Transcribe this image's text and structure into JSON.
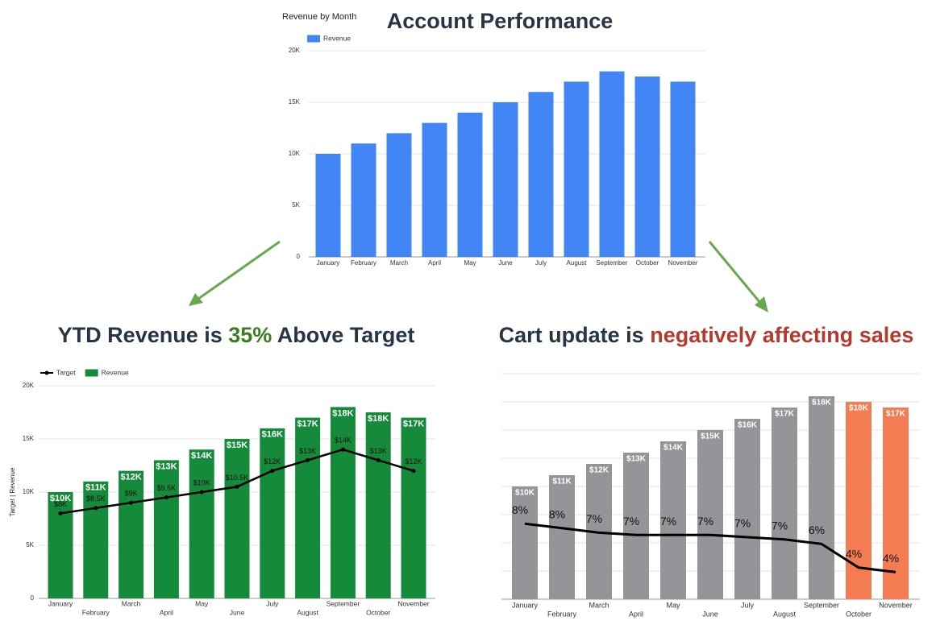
{
  "headings": [
    [
      {
        "text": "Account Performance",
        "color": "#263445"
      }
    ],
    [
      {
        "text": "YTD Revenue is ",
        "color": "#263445"
      },
      {
        "text": "35%",
        "color": "#3a7d1e"
      },
      {
        "text": " Above Target",
        "color": "#263445"
      }
    ],
    [
      {
        "text": "Cart update is ",
        "color": "#263445"
      },
      {
        "text": "negatively affecting sales",
        "color": "#b5392e"
      }
    ]
  ],
  "chart_data": [
    {
      "type": "bar",
      "title": "Revenue by Month",
      "legend": "top-left",
      "categories": [
        "January",
        "February",
        "March",
        "April",
        "May",
        "June",
        "July",
        "August",
        "September",
        "October",
        "November"
      ],
      "series": [
        {
          "name": "Revenue",
          "color": "#4285f4",
          "values": [
            10000,
            11000,
            12000,
            13000,
            14000,
            15000,
            16000,
            17000,
            18000,
            17500,
            17000
          ]
        }
      ],
      "ylim": [
        0,
        20000
      ],
      "yticks": [
        0,
        {
          "value": 5000,
          "label": "5K"
        },
        {
          "value": 10000,
          "label": "10K"
        },
        {
          "value": 15000,
          "label": "15K"
        },
        {
          "value": 20000,
          "label": "20K"
        }
      ],
      "grid": true
    },
    {
      "type": "bar_line",
      "ylabel": "Target | Revenue",
      "legend": "top-left",
      "categories": [
        "January",
        "February",
        "March",
        "April",
        "May",
        "June",
        "July",
        "August",
        "September",
        "October",
        "November"
      ],
      "series": [
        {
          "name": "Target",
          "kind": "line",
          "color": "#000000",
          "markers": true,
          "values": [
            8000,
            8500,
            9000,
            9500,
            10000,
            10500,
            12000,
            13000,
            14000,
            13000,
            12000
          ],
          "value_labels": [
            "$8K",
            "$8.5K",
            "$9K",
            "$9.5K",
            "$10K",
            "$10.5K",
            "$12K",
            "$13K",
            "$14K",
            "$13K",
            "$12K"
          ]
        },
        {
          "name": "Revenue",
          "kind": "bar",
          "color": "#148a3a",
          "values": [
            10000,
            11000,
            12000,
            13000,
            14000,
            15000,
            16000,
            17000,
            18000,
            17500,
            17000
          ],
          "value_labels": [
            "$10K",
            "$11K",
            "$12K",
            "$13K",
            "$14K",
            "$15K",
            "$16K",
            "$17K",
            "$18K",
            "$18K",
            "$17K"
          ]
        }
      ],
      "ylim": [
        0,
        20000
      ],
      "yticks": [
        0,
        {
          "value": 5000,
          "label": "5K"
        },
        {
          "value": 10000,
          "label": "10K"
        },
        {
          "value": 15000,
          "label": "15K"
        },
        {
          "value": 20000,
          "label": "20K"
        }
      ],
      "grid": true
    },
    {
      "type": "bar_line",
      "categories": [
        "January",
        "February",
        "March",
        "April",
        "May",
        "June",
        "July",
        "August",
        "September",
        "October",
        "November"
      ],
      "series": [
        {
          "kind": "bar",
          "color": "#939598",
          "colors": [
            "#939598",
            "#939598",
            "#939598",
            "#939598",
            "#939598",
            "#939598",
            "#939598",
            "#939598",
            "#939598",
            "#f47c52",
            "#f47c52"
          ],
          "values": [
            10000,
            11000,
            12000,
            13000,
            14000,
            15000,
            16000,
            17000,
            18000,
            17500,
            17000
          ],
          "value_labels": [
            "$10K",
            "$11K",
            "$12K",
            "$13K",
            "$14K",
            "$15K",
            "$16K",
            "$17K",
            "$18K",
            "$18K",
            "$17K"
          ]
        },
        {
          "kind": "line",
          "axis": "y2",
          "color": "#000000",
          "values": [
            8.2,
            7.8,
            7.4,
            7.2,
            7.2,
            7.2,
            7.0,
            6.8,
            6.4,
            4.3,
            3.9
          ],
          "value_labels": [
            "8%",
            "8%",
            "7%",
            "7%",
            "7%",
            "7%",
            "7%",
            "7%",
            "6%",
            "4%",
            "4%"
          ]
        }
      ],
      "ylim": [
        0,
        20000
      ],
      "y2lim": [
        1.5,
        21.5
      ],
      "yticks": [
        0,
        2500,
        5000,
        7500,
        10000,
        12500,
        15000,
        17500,
        20000
      ],
      "tick_labels": false,
      "grid": true
    }
  ]
}
